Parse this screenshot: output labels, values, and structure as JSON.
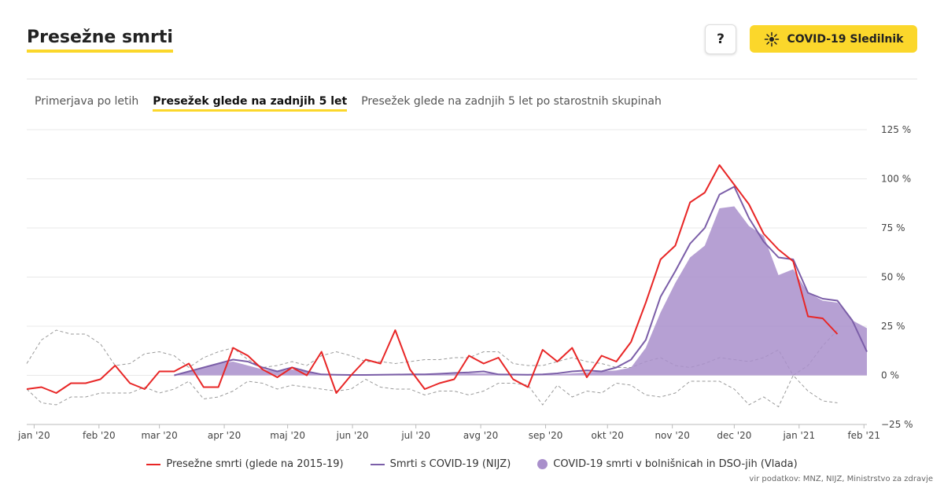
{
  "header": {
    "title": "Presežne smrti",
    "help_label": "?",
    "tracker_label": "COVID-19 Sledilnik"
  },
  "tabs": [
    {
      "label": "Primerjava po letih",
      "active": false
    },
    {
      "label": "Presežek glede na zadnjih 5 let",
      "active": true
    },
    {
      "label": "Presežek glede na zadnjih 5 let po starostnih skupinah",
      "active": false
    }
  ],
  "colors": {
    "accent": "#fbd72b",
    "excess": "#e82626",
    "covid_nijz": "#7b5ea8",
    "covid_hosp": "#a98fcb",
    "band": "#9a9a9a",
    "grid": "#e8e8e8"
  },
  "chart_data": {
    "type": "line",
    "title": "Presežne smrti",
    "ylim": [
      -25,
      125
    ],
    "yticks": [
      -25,
      0,
      25,
      50,
      75,
      100,
      125
    ],
    "ytick_labels": [
      "−25 %",
      "0 %",
      "25 %",
      "50 %",
      "75 %",
      "100 %",
      "125 %"
    ],
    "xlim": [
      0,
      57
    ],
    "xticks": [
      {
        "x": 0.5,
        "label": "jan '20"
      },
      {
        "x": 4.9,
        "label": "feb '20"
      },
      {
        "x": 9.0,
        "label": "mar '20"
      },
      {
        "x": 13.4,
        "label": "apr '20"
      },
      {
        "x": 17.7,
        "label": "maj '20"
      },
      {
        "x": 22.1,
        "label": "jun '20"
      },
      {
        "x": 26.4,
        "label": "jul '20"
      },
      {
        "x": 30.8,
        "label": "avg '20"
      },
      {
        "x": 35.2,
        "label": "sep '20"
      },
      {
        "x": 39.4,
        "label": "okt '20"
      },
      {
        "x": 43.8,
        "label": "nov '20"
      },
      {
        "x": 48.0,
        "label": "dec '20"
      },
      {
        "x": 52.4,
        "label": "jan '21"
      },
      {
        "x": 56.8,
        "label": "feb '21"
      }
    ],
    "series": [
      {
        "name": "COVID-19 smrti v bolnišnicah in DSO-jih (Vlada)",
        "type": "area",
        "points": [
          [
            10,
            0
          ],
          [
            11,
            2
          ],
          [
            12,
            4
          ],
          [
            13,
            6
          ],
          [
            14,
            7
          ],
          [
            15,
            5
          ],
          [
            16,
            3
          ],
          [
            17,
            2
          ],
          [
            18,
            3
          ],
          [
            19,
            2
          ],
          [
            20,
            0.5
          ],
          [
            21,
            0.3
          ],
          [
            22,
            0.2
          ],
          [
            23,
            0.2
          ],
          [
            24,
            0.2
          ],
          [
            25,
            0.3
          ],
          [
            26,
            0.3
          ],
          [
            27,
            0.3
          ],
          [
            28,
            0.5
          ],
          [
            29,
            0.7
          ],
          [
            30,
            1
          ],
          [
            31,
            1
          ],
          [
            32,
            0.8
          ],
          [
            33,
            0.5
          ],
          [
            34,
            0.3
          ],
          [
            35,
            0.3
          ],
          [
            36,
            0.5
          ],
          [
            37,
            1
          ],
          [
            38,
            1.5
          ],
          [
            39,
            2
          ],
          [
            40,
            2.5
          ],
          [
            41,
            4
          ],
          [
            42,
            14
          ],
          [
            43,
            32
          ],
          [
            44,
            47
          ],
          [
            45,
            60
          ],
          [
            46,
            66
          ],
          [
            47,
            85
          ],
          [
            48,
            86
          ],
          [
            49,
            76
          ],
          [
            50,
            71
          ],
          [
            51,
            51
          ],
          [
            52,
            54
          ],
          [
            53,
            42
          ],
          [
            54,
            38
          ],
          [
            55,
            37
          ],
          [
            56,
            28
          ],
          [
            57,
            24
          ]
        ]
      },
      {
        "name": "Smrti s COVID-19 (NIJZ)",
        "type": "line",
        "points": [
          [
            10,
            0
          ],
          [
            11,
            2
          ],
          [
            12,
            4
          ],
          [
            13,
            6
          ],
          [
            14,
            8
          ],
          [
            15,
            7
          ],
          [
            16,
            4
          ],
          [
            17,
            2
          ],
          [
            18,
            4
          ],
          [
            19,
            2
          ],
          [
            20,
            0.5
          ],
          [
            21,
            0.3
          ],
          [
            22,
            0.2
          ],
          [
            23,
            0.2
          ],
          [
            24,
            0.3
          ],
          [
            25,
            0.4
          ],
          [
            26,
            0.5
          ],
          [
            27,
            0.5
          ],
          [
            28,
            0.8
          ],
          [
            29,
            1.2
          ],
          [
            30,
            1.5
          ],
          [
            31,
            2
          ],
          [
            32,
            0.5
          ],
          [
            33,
            0.4
          ],
          [
            34,
            0.3
          ],
          [
            35,
            0.5
          ],
          [
            36,
            1
          ],
          [
            37,
            2
          ],
          [
            38,
            2.5
          ],
          [
            39,
            2
          ],
          [
            40,
            4
          ],
          [
            41,
            8
          ],
          [
            42,
            18
          ],
          [
            43,
            40
          ],
          [
            44,
            53
          ],
          [
            45,
            67
          ],
          [
            46,
            75
          ],
          [
            47,
            92
          ],
          [
            48,
            96
          ],
          [
            49,
            80
          ],
          [
            50,
            68
          ],
          [
            51,
            60
          ],
          [
            52,
            59
          ],
          [
            53,
            42
          ],
          [
            54,
            39
          ],
          [
            55,
            38
          ],
          [
            56,
            28
          ],
          [
            57,
            12
          ]
        ]
      },
      {
        "name": "Presežne smrti (glede na 2015-19)",
        "type": "line",
        "points": [
          [
            0,
            -7
          ],
          [
            1,
            -6
          ],
          [
            2,
            -9
          ],
          [
            3,
            -4
          ],
          [
            4,
            -4
          ],
          [
            5,
            -2
          ],
          [
            6,
            5
          ],
          [
            7,
            -4
          ],
          [
            8,
            -7
          ],
          [
            9,
            2
          ],
          [
            10,
            2
          ],
          [
            11,
            6
          ],
          [
            12,
            -6
          ],
          [
            13,
            -6
          ],
          [
            14,
            14
          ],
          [
            15,
            10
          ],
          [
            16,
            3
          ],
          [
            17,
            -1
          ],
          [
            18,
            4
          ],
          [
            19,
            0
          ],
          [
            20,
            12
          ],
          [
            21,
            -9
          ],
          [
            22,
            0
          ],
          [
            23,
            8
          ],
          [
            24,
            6
          ],
          [
            25,
            23
          ],
          [
            26,
            3
          ],
          [
            27,
            -7
          ],
          [
            28,
            -4
          ],
          [
            29,
            -2
          ],
          [
            30,
            10
          ],
          [
            31,
            6
          ],
          [
            32,
            9
          ],
          [
            33,
            -2
          ],
          [
            34,
            -6
          ],
          [
            35,
            13
          ],
          [
            36,
            7
          ],
          [
            37,
            14
          ],
          [
            38,
            -1
          ],
          [
            39,
            10
          ],
          [
            40,
            7
          ],
          [
            41,
            17
          ],
          [
            42,
            37
          ],
          [
            43,
            59
          ],
          [
            44,
            66
          ],
          [
            45,
            88
          ],
          [
            46,
            93
          ],
          [
            47,
            107
          ],
          [
            48,
            97
          ],
          [
            49,
            87
          ],
          [
            50,
            72
          ],
          [
            51,
            64
          ],
          [
            52,
            58
          ],
          [
            53,
            30
          ],
          [
            54,
            29
          ],
          [
            55,
            21
          ]
        ]
      },
      {
        "name": "upper band",
        "type": "dashed",
        "points": [
          [
            0,
            6
          ],
          [
            1,
            18
          ],
          [
            2,
            23
          ],
          [
            3,
            21
          ],
          [
            4,
            21
          ],
          [
            5,
            16
          ],
          [
            6,
            5
          ],
          [
            7,
            6
          ],
          [
            8,
            11
          ],
          [
            9,
            12
          ],
          [
            10,
            10
          ],
          [
            11,
            4
          ],
          [
            12,
            9
          ],
          [
            13,
            12
          ],
          [
            14,
            14
          ],
          [
            15,
            8
          ],
          [
            16,
            4
          ],
          [
            17,
            5
          ],
          [
            18,
            7
          ],
          [
            19,
            5
          ],
          [
            20,
            10
          ],
          [
            21,
            12
          ],
          [
            22,
            10
          ],
          [
            23,
            7
          ],
          [
            24,
            7
          ],
          [
            25,
            6
          ],
          [
            26,
            7
          ],
          [
            27,
            8
          ],
          [
            28,
            8
          ],
          [
            29,
            9
          ],
          [
            30,
            9
          ],
          [
            31,
            12
          ],
          [
            32,
            12
          ],
          [
            33,
            6
          ],
          [
            34,
            5
          ],
          [
            35,
            5
          ],
          [
            36,
            7
          ],
          [
            37,
            9
          ],
          [
            38,
            7
          ],
          [
            39,
            6
          ],
          [
            40,
            4
          ],
          [
            41,
            4
          ],
          [
            42,
            7
          ],
          [
            43,
            9
          ],
          [
            44,
            5
          ],
          [
            45,
            4
          ],
          [
            46,
            6
          ],
          [
            47,
            9
          ],
          [
            48,
            8
          ],
          [
            49,
            7
          ],
          [
            50,
            9
          ],
          [
            51,
            13
          ],
          [
            52,
            0
          ],
          [
            53,
            5
          ],
          [
            54,
            15
          ],
          [
            55,
            23
          ]
        ]
      },
      {
        "name": "lower band",
        "type": "dashed",
        "points": [
          [
            0,
            -7
          ],
          [
            1,
            -14
          ],
          [
            2,
            -15
          ],
          [
            3,
            -11
          ],
          [
            4,
            -11
          ],
          [
            5,
            -9
          ],
          [
            6,
            -9
          ],
          [
            7,
            -9
          ],
          [
            8,
            -6
          ],
          [
            9,
            -9
          ],
          [
            10,
            -7
          ],
          [
            11,
            -3
          ],
          [
            12,
            -12
          ],
          [
            13,
            -11
          ],
          [
            14,
            -8
          ],
          [
            15,
            -3
          ],
          [
            16,
            -4
          ],
          [
            17,
            -7
          ],
          [
            18,
            -5
          ],
          [
            19,
            -6
          ],
          [
            20,
            -7
          ],
          [
            21,
            -8
          ],
          [
            22,
            -7
          ],
          [
            23,
            -2
          ],
          [
            24,
            -6
          ],
          [
            25,
            -7
          ],
          [
            26,
            -7
          ],
          [
            27,
            -10
          ],
          [
            28,
            -8
          ],
          [
            29,
            -8
          ],
          [
            30,
            -10
          ],
          [
            31,
            -8
          ],
          [
            32,
            -4
          ],
          [
            33,
            -4
          ],
          [
            34,
            -5
          ],
          [
            35,
            -15
          ],
          [
            36,
            -5
          ],
          [
            37,
            -11
          ],
          [
            38,
            -8
          ],
          [
            39,
            -9
          ],
          [
            40,
            -4
          ],
          [
            41,
            -5
          ],
          [
            42,
            -10
          ],
          [
            43,
            -11
          ],
          [
            44,
            -9
          ],
          [
            45,
            -3
          ],
          [
            46,
            -3
          ],
          [
            47,
            -3
          ],
          [
            48,
            -7
          ],
          [
            49,
            -15
          ],
          [
            50,
            -11
          ],
          [
            51,
            -16
          ],
          [
            52,
            0
          ],
          [
            53,
            -8
          ],
          [
            54,
            -13
          ],
          [
            55,
            -14
          ]
        ]
      }
    ],
    "legend": [
      {
        "label": "Presežne smrti (glede na 2015-19)",
        "kind": "line",
        "color": "#e82626"
      },
      {
        "label": "Smrti s COVID-19 (NIJZ)",
        "kind": "line",
        "color": "#7b5ea8"
      },
      {
        "label": "COVID-19 smrti v bolnišnicah in DSO-jih (Vlada)",
        "kind": "dot",
        "color": "#a98fcb"
      }
    ],
    "legend_position": "bottom",
    "source": "vir podatkov: MNZ, NIJZ, Ministrstvo za zdravje"
  }
}
